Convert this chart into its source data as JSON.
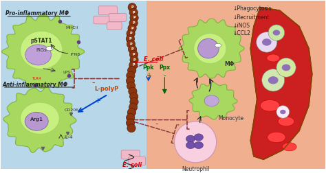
{
  "bg_left_color": "#b8d8ea",
  "bg_right_color": "#f0b090",
  "text_annotations": {
    "pro_macro": "Pro-inflammatory MΦ",
    "anti_macro": "Anti-inflammatory MΦ",
    "mhcii": "MHCII",
    "pstat1": "pSTAT1",
    "irgs": "IRGs",
    "ifnb": "IFNβ",
    "lps": "LPS",
    "tlr4": "TLR4",
    "arg1": "Arg1",
    "cd206": "CD206",
    "il4": "IL-4",
    "lpolyp": "L-polyP",
    "ecoli_top": "E. coli",
    "ecoli_bot": "E. coli",
    "ppk": "Ppk",
    "ppx": "Ppx",
    "mphi": "MΦ",
    "monocyte": "Monocyte",
    "neutrophil": "Neutrophil",
    "phagocytosis": "↓Phagocytosis",
    "recruitment": "↓Recruitment",
    "inos": "↓iNOS",
    "ccl2": "↓CCL2"
  },
  "figsize": [
    4.74,
    2.52
  ],
  "dpi": 100
}
